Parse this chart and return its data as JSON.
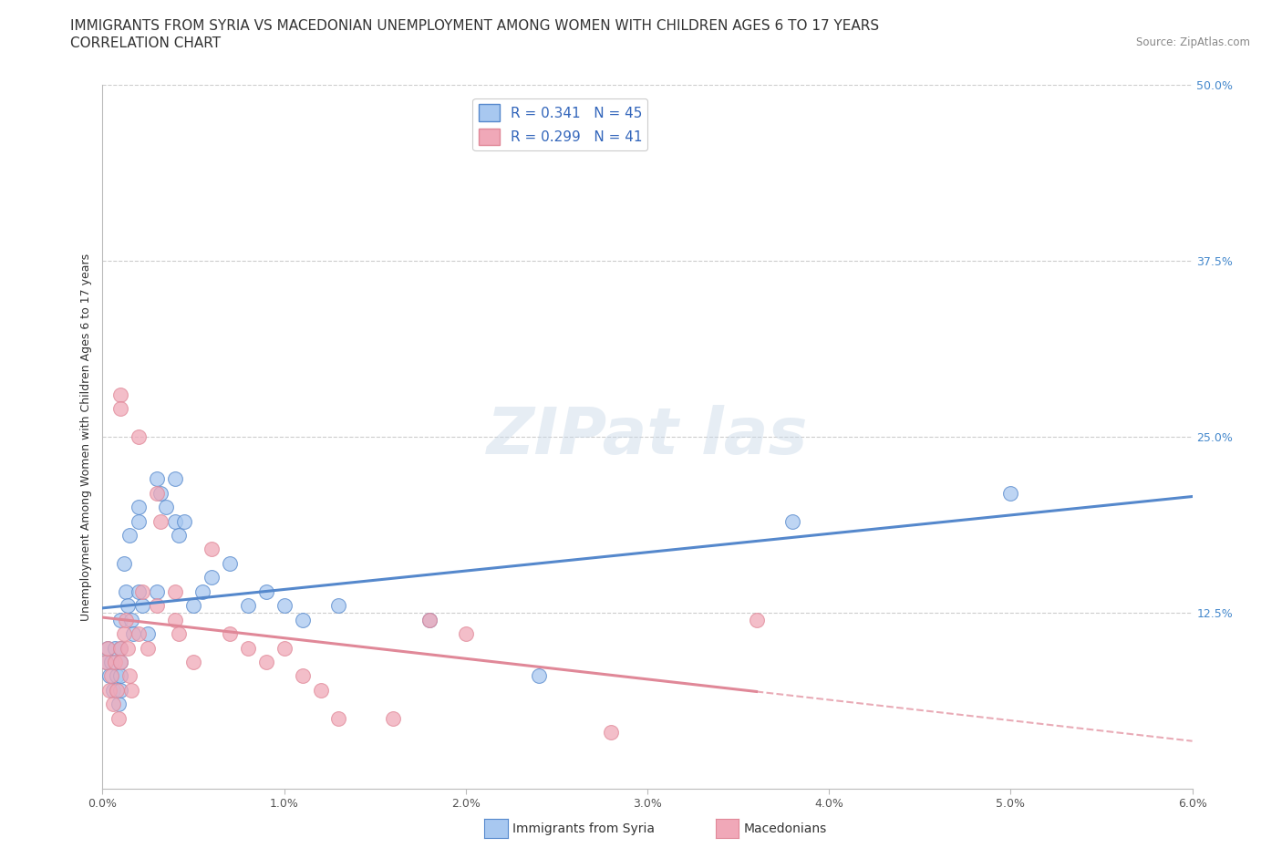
{
  "title_line1": "IMMIGRANTS FROM SYRIA VS MACEDONIAN UNEMPLOYMENT AMONG WOMEN WITH CHILDREN AGES 6 TO 17 YEARS",
  "title_line2": "CORRELATION CHART",
  "source_text": "Source: ZipAtlas.com",
  "ylabel": "Unemployment Among Women with Children Ages 6 to 17 years",
  "xlim": [
    0.0,
    0.06
  ],
  "ylim": [
    0.0,
    0.5
  ],
  "xtick_labels": [
    "0.0%",
    "1.0%",
    "2.0%",
    "3.0%",
    "4.0%",
    "5.0%",
    "6.0%"
  ],
  "xtick_vals": [
    0.0,
    0.01,
    0.02,
    0.03,
    0.04,
    0.05,
    0.06
  ],
  "ytick_labels": [
    "12.5%",
    "25.0%",
    "37.5%",
    "50.0%"
  ],
  "ytick_vals": [
    0.125,
    0.25,
    0.375,
    0.5
  ],
  "color_syria": "#a8c8f0",
  "color_macedonian": "#f0a8b8",
  "color_line_syria": "#5588cc",
  "color_line_macedonian": "#e08898",
  "R_syria": "0.341",
  "N_syria": "45",
  "R_macedonian": "0.299",
  "N_macedonian": "41",
  "legend_label_syria": "Immigrants from Syria",
  "legend_label_macedonian": "Macedonians",
  "background_color": "#ffffff",
  "grid_color": "#cccccc",
  "title_fontsize": 11,
  "axis_label_fontsize": 9,
  "tick_fontsize": 9,
  "syria_x": [
    0.0002,
    0.0003,
    0.0004,
    0.0005,
    0.0006,
    0.0007,
    0.0008,
    0.0009,
    0.001,
    0.001,
    0.001,
    0.001,
    0.001,
    0.0012,
    0.0013,
    0.0014,
    0.0015,
    0.0016,
    0.0017,
    0.002,
    0.002,
    0.002,
    0.0022,
    0.0025,
    0.003,
    0.003,
    0.0032,
    0.0035,
    0.004,
    0.004,
    0.0042,
    0.0045,
    0.005,
    0.0055,
    0.006,
    0.007,
    0.008,
    0.009,
    0.01,
    0.011,
    0.013,
    0.018,
    0.024,
    0.038,
    0.05
  ],
  "syria_y": [
    0.09,
    0.1,
    0.08,
    0.09,
    0.07,
    0.1,
    0.08,
    0.06,
    0.1,
    0.12,
    0.09,
    0.08,
    0.07,
    0.16,
    0.14,
    0.13,
    0.18,
    0.12,
    0.11,
    0.2,
    0.19,
    0.14,
    0.13,
    0.11,
    0.22,
    0.14,
    0.21,
    0.2,
    0.19,
    0.22,
    0.18,
    0.19,
    0.13,
    0.14,
    0.15,
    0.16,
    0.13,
    0.14,
    0.13,
    0.12,
    0.13,
    0.12,
    0.08,
    0.19,
    0.21
  ],
  "macedonian_x": [
    0.0002,
    0.0003,
    0.0004,
    0.0005,
    0.0006,
    0.0007,
    0.0008,
    0.0009,
    0.001,
    0.001,
    0.001,
    0.001,
    0.0012,
    0.0013,
    0.0014,
    0.0015,
    0.0016,
    0.002,
    0.002,
    0.0022,
    0.0025,
    0.003,
    0.003,
    0.0032,
    0.004,
    0.004,
    0.0042,
    0.005,
    0.006,
    0.007,
    0.008,
    0.009,
    0.01,
    0.011,
    0.012,
    0.013,
    0.016,
    0.018,
    0.02,
    0.028,
    0.036
  ],
  "macedonian_y": [
    0.09,
    0.1,
    0.07,
    0.08,
    0.06,
    0.09,
    0.07,
    0.05,
    0.28,
    0.27,
    0.1,
    0.09,
    0.11,
    0.12,
    0.1,
    0.08,
    0.07,
    0.25,
    0.11,
    0.14,
    0.1,
    0.21,
    0.13,
    0.19,
    0.14,
    0.12,
    0.11,
    0.09,
    0.17,
    0.11,
    0.1,
    0.09,
    0.1,
    0.08,
    0.07,
    0.05,
    0.05,
    0.12,
    0.11,
    0.04,
    0.12
  ]
}
